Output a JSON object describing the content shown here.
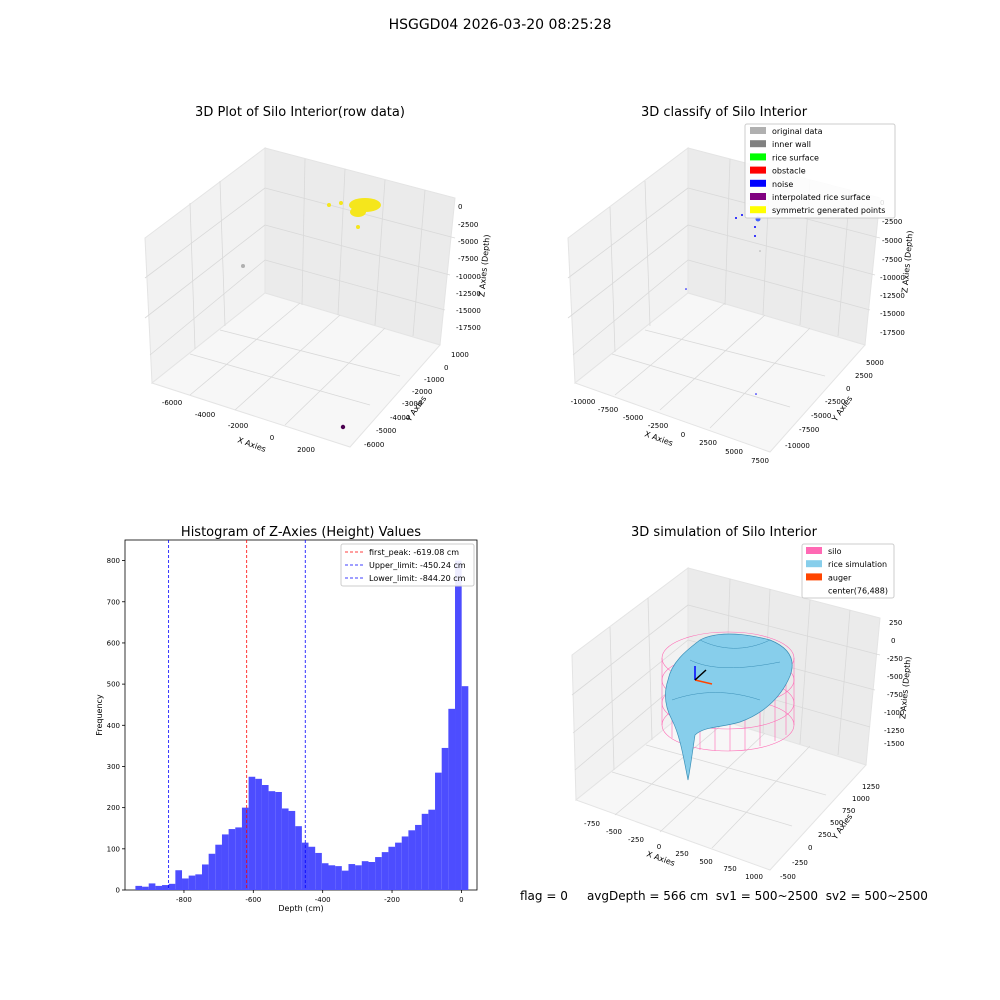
{
  "suptitle": "HSGGD04 2026-03-20 08:25:28",
  "footer": {
    "flag": "flag = 0",
    "avg_depth": "avgDepth = 566 cm",
    "sv1": "sv1 = 500~2500",
    "sv2": "sv2 = 500~2500"
  },
  "colors": {
    "hist_bar": "#4d4dff",
    "first_peak": "#ff0000",
    "limits": "#0000ff",
    "silo": "#ff69b4",
    "rice": "#87ceeb",
    "auger": "#ff4500",
    "raw_points": "#f5e61c",
    "pane": "#f2f2f2",
    "grid": "#d9d9d9"
  },
  "plot1": {
    "title": "3D Plot of Silo Interior(row data)",
    "xlabel": "X Axies",
    "ylabel": "Y Axies",
    "zlabel": "Z Axies (Depth)",
    "xticks": [
      "-6000",
      "-4000",
      "-2000",
      "0",
      "2000"
    ],
    "yticks": [
      "1000",
      "0",
      "-1000",
      "-2000",
      "-3000",
      "-4000",
      "-5000",
      "-6000"
    ],
    "zticks": [
      "0",
      "-2500",
      "-5000",
      "-7500",
      "-10000",
      "-12500",
      "-15000",
      "-17500"
    ]
  },
  "plot2": {
    "title": "3D classify of Silo Interior",
    "xlabel": "X Axies",
    "ylabel": "Y Axies",
    "zlabel": "Z Axies (Depth)",
    "xticks": [
      "-10000",
      "-7500",
      "-5000",
      "-2500",
      "0",
      "2500",
      "5000",
      "7500"
    ],
    "yticks": [
      "5000",
      "2500",
      "0",
      "-2500",
      "-5000",
      "-7500",
      "-10000"
    ],
    "zticks": [
      "0",
      "-2500",
      "-5000",
      "-7500",
      "-10000",
      "-12500",
      "-15000",
      "-17500"
    ],
    "legend": [
      {
        "label": "original data",
        "color": "#b0b0b0"
      },
      {
        "label": "inner wall",
        "color": "#808080"
      },
      {
        "label": "rice surface",
        "color": "#00ff00"
      },
      {
        "label": "obstacle",
        "color": "#ff0000"
      },
      {
        "label": "noise",
        "color": "#0000ff"
      },
      {
        "label": "interpolated rice surface",
        "color": "#800080"
      },
      {
        "label": "symmetric generated points",
        "color": "#ffff00"
      }
    ]
  },
  "plot4": {
    "title": "3D simulation of Silo Interior",
    "xlabel": "X Axies",
    "ylabel": "Y Axies",
    "zlabel": "Z Axies (Depth)",
    "xticks": [
      "-750",
      "-500",
      "-250",
      "0",
      "250",
      "500",
      "750",
      "1000"
    ],
    "yticks": [
      "1250",
      "1000",
      "750",
      "500",
      "250",
      "0",
      "-250",
      "-500"
    ],
    "zticks": [
      "250",
      "0",
      "-250",
      "-500",
      "-750",
      "-1000",
      "-1250",
      "-1500"
    ],
    "legend": [
      {
        "label": "silo",
        "color": "#ff69b4"
      },
      {
        "label": "rice simulation",
        "color": "#87ceeb"
      },
      {
        "label": "auger",
        "color": "#ff4500"
      },
      {
        "label": "center(76,488)",
        "color": ""
      }
    ]
  },
  "chart_data": {
    "type": "bar",
    "title": "Histogram of Z-Axies (Height) Values",
    "xlabel": "Depth (cm)",
    "ylabel": "Frequency",
    "xlim": [
      -970,
      45
    ],
    "ylim": [
      0,
      850
    ],
    "xticks": [
      -800,
      -600,
      -400,
      -200,
      0
    ],
    "yticks": [
      0,
      100,
      200,
      300,
      400,
      500,
      600,
      700,
      800
    ],
    "bin_width": 19.2,
    "bins_start": [
      -940,
      -920.8,
      -901.6,
      -882.4,
      -863.2,
      -844,
      -824.8,
      -805.6,
      -786.4,
      -767.2,
      -748,
      -728.8,
      -709.6,
      -690.4,
      -671.2,
      -652,
      -632.8,
      -613.6,
      -594.4,
      -575.2,
      -556,
      -536.8,
      -517.6,
      -498.4,
      -479.2,
      -460,
      -440.8,
      -421.6,
      -402.4,
      -383.2,
      -364,
      -344.8,
      -325.6,
      -306.4,
      -287.2,
      -268,
      -248.8,
      -229.6,
      -210.4,
      -191.2,
      -172,
      -152.8,
      -133.6,
      -114.4,
      -95.2,
      -76,
      -56.8,
      -37.6,
      -18.4,
      0.8
    ],
    "counts": [
      10,
      8,
      16,
      10,
      12,
      15,
      48,
      28,
      35,
      38,
      62,
      88,
      110,
      135,
      148,
      152,
      200,
      275,
      270,
      255,
      240,
      238,
      198,
      192,
      155,
      115,
      105,
      90,
      65,
      60,
      58,
      47,
      63,
      60,
      70,
      68,
      80,
      92,
      105,
      115,
      130,
      145,
      158,
      185,
      195,
      285,
      345,
      440,
      800,
      495
    ],
    "vlines": [
      {
        "label": "first_peak: -619.08 cm",
        "value": -619.08,
        "color": "#ff0000"
      },
      {
        "label": "Upper_limit: -450.24 cm",
        "value": -450.24,
        "color": "#0000ff"
      },
      {
        "label": "Lower_limit: -844.20 cm",
        "value": -844.2,
        "color": "#0000ff"
      }
    ]
  }
}
